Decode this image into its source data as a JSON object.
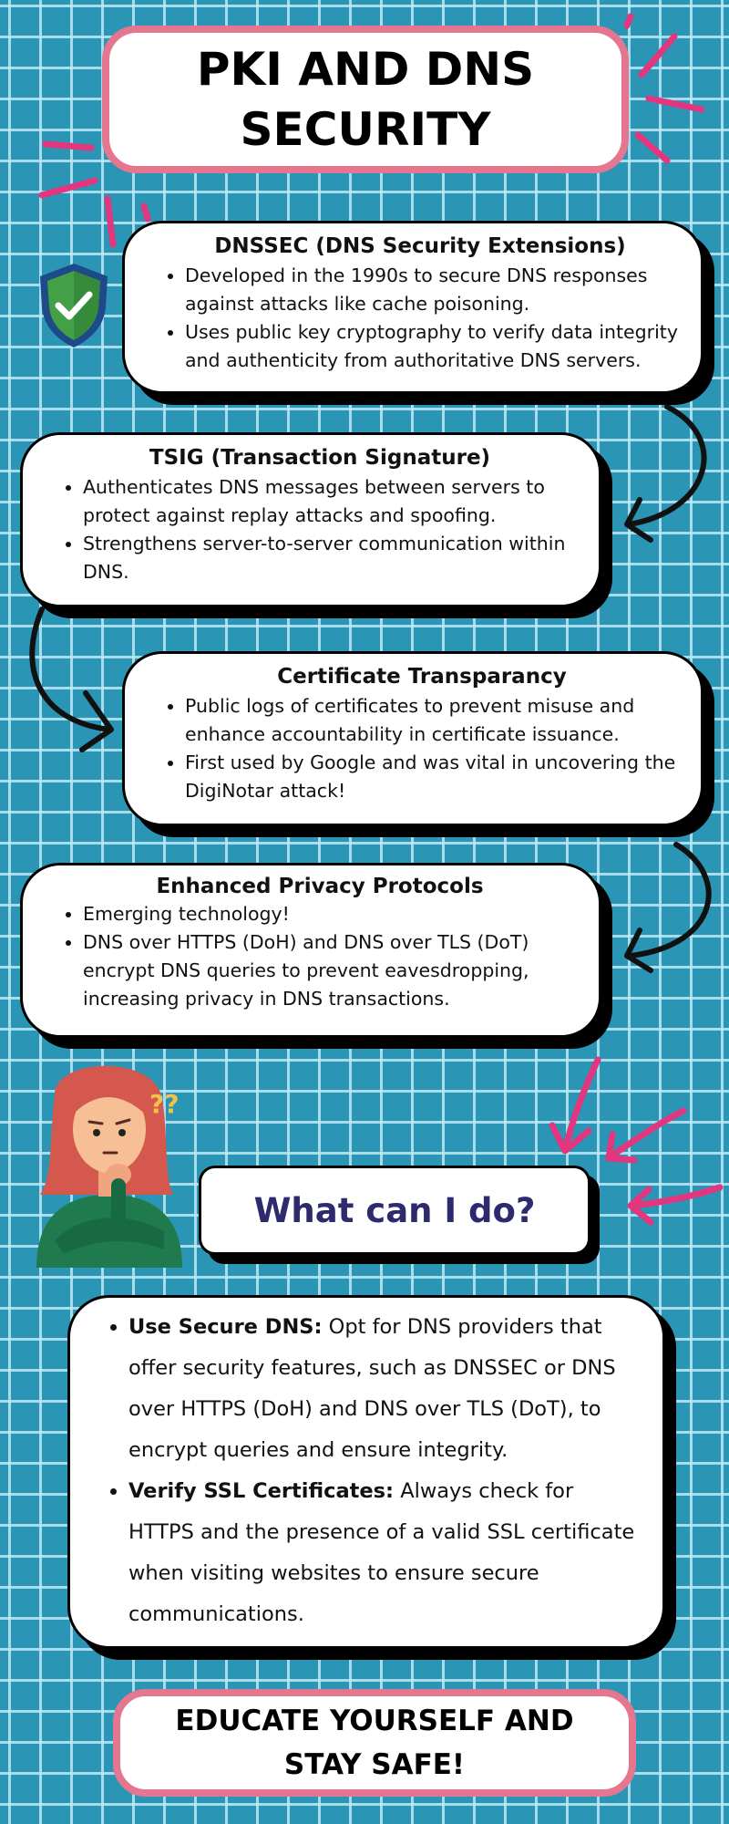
{
  "title": {
    "line1": "PKI AND DNS",
    "line2": "SECURITY"
  },
  "cards": [
    {
      "heading": "DNSSEC (DNS Security Extensions)",
      "bullets": [
        "Developed in the 1990s to secure DNS responses against attacks like cache poisoning.",
        "Uses public key cryptography to verify data integrity and authenticity from authoritative DNS servers."
      ]
    },
    {
      "heading": "TSIG (Transaction Signature)",
      "bullets": [
        "Authenticates DNS messages between servers to protect against replay attacks and spoofing.",
        "Strengthens server-to-server communication within DNS."
      ]
    },
    {
      "heading": "Certificate Transparancy",
      "bullets": [
        "Public logs of certificates to prevent misuse and enhance accountability in certificate issuance.",
        "First used by Google and was vital in uncovering the DigiNotar attack!"
      ]
    },
    {
      "heading": "Enhanced Privacy Protocols",
      "bullets": [
        "Emerging technology!",
        "DNS over HTTPS (DoH) and DNS over TLS (DoT) encrypt DNS queries to prevent eavesdropping, increasing privacy in DNS transactions."
      ]
    }
  ],
  "question": "What can I do?",
  "tips": [
    {
      "bold": "Use Secure DNS:",
      "text": " Opt for DNS providers that offer security features, such as DNSSEC or DNS over HTTPS (DoH) and DNS over TLS (DoT), to encrypt queries and ensure integrity."
    },
    {
      "bold": "Verify SSL Certificates:",
      "text": " Always check for HTTPS and the presence of a valid SSL certificate when visiting websites to ensure secure communications."
    }
  ],
  "footer": {
    "line1": "EDUCATE YOURSELF AND",
    "line2": "STAY SAFE!"
  },
  "icons": {
    "shield": "shield-check-icon",
    "person": "thinking-woman-illustration",
    "question_marks": "??"
  },
  "colors": {
    "background": "#2a95b5",
    "grid": "#bee8f5",
    "pink": "#e4778f",
    "accent_pink": "#e2367f",
    "question_text": "#2d2a6e",
    "shield": "#43a047"
  }
}
